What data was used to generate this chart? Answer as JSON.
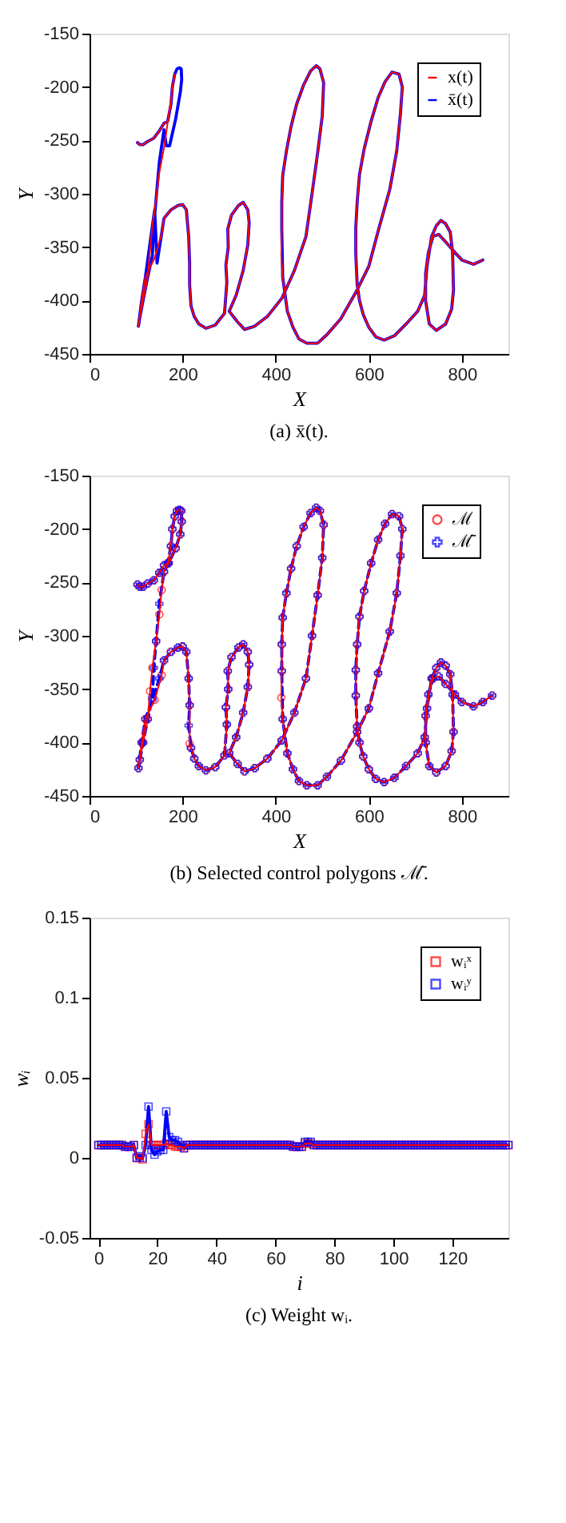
{
  "chart_data": [
    {
      "type": "line",
      "xlabel": "X",
      "ylabel": "Y",
      "xlim": [
        0,
        900
      ],
      "ylim": [
        -450,
        -150
      ],
      "xticks": [
        0,
        200,
        400,
        600,
        800
      ],
      "yticks": [
        -450,
        -400,
        -350,
        -300,
        -250,
        -200,
        -150
      ],
      "grid": false,
      "legend": "top right",
      "line_style": "solid",
      "marker": "none",
      "annotations": [
        "(a) x̄(t)."
      ],
      "series": [
        {
          "name": "x(t)",
          "color": "#ff0000",
          "x": [
            103,
            108,
            115,
            125,
            138,
            150,
            160,
            168,
            175,
            178,
            183,
            160,
            150,
            143,
            135,
            130,
            125,
            115,
            108,
            105,
            112,
            120,
            140,
            155,
            160,
            175,
            190,
            200,
            208,
            213,
            215,
            215,
            218,
            225,
            235,
            250,
            270,
            290,
            295,
            293,
            298,
            297,
            305,
            320,
            330,
            340,
            343,
            340,
            330,
            315,
            300,
            318,
            333,
            355,
            382,
            413,
            440,
            465,
            478,
            490,
            500,
            503,
            495,
            487,
            475,
            460,
            445,
            433,
            423,
            415,
            413,
            413,
            412,
            415,
            425,
            437,
            450,
            467,
            490,
            510,
            540,
            575,
            600,
            620,
            645,
            660,
            668,
            672,
            665,
            650,
            635,
            620,
            605,
            590,
            580,
            575,
            572,
            572,
            575,
            580,
            588,
            600,
            615,
            633,
            655,
            680,
            705,
            720,
            725,
            735,
            745,
            755,
            765,
            775,
            780,
            782,
            778,
            765,
            745,
            730,
            722,
            722,
            728,
            738,
            750,
            765,
            785,
            800,
            825,
            845
          ],
          "values": [
            -252,
            -254,
            -254,
            -251,
            -248,
            -241,
            -234,
            -232,
            -216,
            -200,
            -188,
            -257,
            -280,
            -305,
            -330,
            -352,
            -378,
            -400,
            -416,
            -424,
            -400,
            -378,
            -360,
            -337,
            -323,
            -315,
            -311,
            -310,
            -315,
            -340,
            -365,
            -385,
            -405,
            -415,
            -422,
            -426,
            -423,
            -412,
            -383,
            -367,
            -350,
            -333,
            -320,
            -311,
            -308,
            -315,
            -327,
            -348,
            -372,
            -395,
            -410,
            -420,
            -427,
            -424,
            -415,
            -398,
            -372,
            -340,
            -300,
            -262,
            -227,
            -196,
            -183,
            -180,
            -185,
            -198,
            -216,
            -237,
            -260,
            -283,
            -308,
            -333,
            -358,
            -378,
            -410,
            -425,
            -436,
            -440,
            -440,
            -432,
            -417,
            -390,
            -368,
            -335,
            -296,
            -260,
            -225,
            -200,
            -188,
            -186,
            -195,
            -210,
            -232,
            -258,
            -282,
            -308,
            -332,
            -356,
            -385,
            -400,
            -413,
            -425,
            -434,
            -437,
            -433,
            -422,
            -410,
            -395,
            -368,
            -340,
            -330,
            -325,
            -328,
            -336,
            -355,
            -390,
            -408,
            -422,
            -428,
            -422,
            -400,
            -375,
            -355,
            -340,
            -338,
            -345,
            -355,
            -362,
            -366,
            -362
          ]
        },
        {
          "name": "x̄(t)",
          "color": "#0000ff",
          "x": [
            103,
            108,
            115,
            125,
            138,
            150,
            160,
            168,
            175,
            178,
            183,
            188,
            193,
            197,
            198,
            195,
            185,
            172,
            165,
            160,
            150,
            143,
            138,
            135,
            125,
            115,
            108,
            105,
            112,
            120,
            135,
            140,
            145,
            160,
            175,
            190,
            200,
            208,
            213,
            215,
            215,
            218,
            225,
            235,
            250,
            270,
            290,
            295,
            293,
            298,
            297,
            305,
            320,
            330,
            340,
            343,
            340,
            330,
            315,
            300,
            318,
            333,
            355,
            382,
            413,
            440,
            465,
            478,
            490,
            500,
            503,
            495,
            487,
            475,
            460,
            445,
            433,
            423,
            415,
            413,
            413,
            415,
            425,
            437,
            450,
            467,
            490,
            510,
            540,
            575,
            600,
            620,
            645,
            660,
            668,
            672,
            665,
            650,
            635,
            620,
            605,
            590,
            580,
            575,
            572,
            572,
            575,
            580,
            588,
            600,
            615,
            633,
            655,
            680,
            705,
            720,
            725,
            735,
            745,
            755,
            765,
            775,
            780,
            782,
            778,
            765,
            745,
            730,
            722,
            722,
            728,
            738,
            750,
            765,
            785,
            800,
            825,
            845
          ],
          "values": [
            -252,
            -254,
            -254,
            -251,
            -248,
            -241,
            -234,
            -232,
            -216,
            -200,
            -188,
            -183,
            -182,
            -183,
            -193,
            -205,
            -230,
            -255,
            -255,
            -240,
            -270,
            -305,
            -330,
            -358,
            -378,
            -400,
            -416,
            -424,
            -400,
            -378,
            -330,
            -315,
            -365,
            -323,
            -315,
            -311,
            -310,
            -315,
            -340,
            -365,
            -385,
            -405,
            -415,
            -422,
            -426,
            -423,
            -412,
            -383,
            -367,
            -350,
            -333,
            -320,
            -311,
            -308,
            -315,
            -327,
            -348,
            -372,
            -395,
            -410,
            -420,
            -427,
            -424,
            -415,
            -398,
            -372,
            -340,
            -300,
            -262,
            -227,
            -196,
            -183,
            -180,
            -185,
            -198,
            -216,
            -237,
            -260,
            -283,
            -308,
            -333,
            -378,
            -410,
            -425,
            -436,
            -440,
            -440,
            -432,
            -417,
            -390,
            -368,
            -335,
            -296,
            -260,
            -225,
            -200,
            -188,
            -186,
            -195,
            -210,
            -232,
            -258,
            -282,
            -308,
            -332,
            -356,
            -385,
            -400,
            -413,
            -425,
            -434,
            -437,
            -433,
            -422,
            -410,
            -395,
            -368,
            -340,
            -330,
            -325,
            -328,
            -336,
            -355,
            -390,
            -408,
            -422,
            -428,
            -422,
            -400,
            -375,
            -355,
            -340,
            -338,
            -345,
            -355,
            -362,
            -366,
            -362
          ]
        }
      ]
    },
    {
      "type": "line",
      "xlabel": "X",
      "ylabel": "Y",
      "xlim": [
        0,
        900
      ],
      "ylim": [
        -450,
        -150
      ],
      "xticks": [
        0,
        200,
        400,
        600,
        800
      ],
      "yticks": [
        -450,
        -400,
        -350,
        -300,
        -250,
        -200,
        -150
      ],
      "grid": false,
      "legend": "top right",
      "annotations": [
        "(b) Selected control polygons ℳ̄."
      ],
      "series": [
        {
          "name": "ℳ",
          "color": "#ff0000",
          "marker": "circle",
          "line_style": "solid",
          "x": [
            103,
            108,
            115,
            125,
            138,
            150,
            160,
            168,
            175,
            178,
            183,
            188,
            193,
            197,
            198,
            195,
            185,
            170,
            160,
            155,
            150,
            143,
            135,
            130,
            125,
            115,
            108,
            105,
            112,
            120,
            140,
            155,
            160,
            175,
            190,
            200,
            208,
            213,
            215,
            215,
            218,
            225,
            235,
            250,
            270,
            290,
            295,
            293,
            298,
            297,
            305,
            320,
            330,
            340,
            343,
            340,
            330,
            315,
            300,
            318,
            333,
            355,
            382,
            413,
            440,
            465,
            478,
            490,
            500,
            503,
            495,
            487,
            475,
            460,
            445,
            433,
            423,
            415,
            413,
            413,
            412,
            415,
            425,
            437,
            450,
            467,
            490,
            510,
            540,
            575,
            600,
            620,
            645,
            660,
            668,
            672,
            665,
            650,
            635,
            620,
            605,
            590,
            580,
            575,
            572,
            572,
            575,
            580,
            588,
            600,
            615,
            633,
            655,
            680,
            705,
            720,
            725,
            735,
            745,
            755,
            765,
            775,
            780,
            782,
            778,
            765,
            745,
            730,
            722,
            722,
            728,
            738,
            750,
            765,
            785,
            800,
            825,
            845,
            865
          ],
          "values": [
            -252,
            -254,
            -254,
            -251,
            -248,
            -241,
            -234,
            -232,
            -216,
            -200,
            -188,
            -183,
            -182,
            -183,
            -193,
            -205,
            -218,
            -232,
            -240,
            -257,
            -280,
            -305,
            -330,
            -352,
            -378,
            -400,
            -416,
            -424,
            -400,
            -378,
            -360,
            -337,
            -323,
            -315,
            -311,
            -310,
            -315,
            -340,
            -365,
            -401,
            -405,
            -415,
            -422,
            -426,
            -423,
            -412,
            -383,
            -367,
            -350,
            -333,
            -320,
            -311,
            -308,
            -315,
            -327,
            -348,
            -372,
            -395,
            -410,
            -420,
            -427,
            -424,
            -415,
            -398,
            -372,
            -340,
            -300,
            -262,
            -227,
            -196,
            -183,
            -180,
            -185,
            -198,
            -216,
            -237,
            -260,
            -283,
            -308,
            -333,
            -358,
            -378,
            -410,
            -425,
            -436,
            -440,
            -440,
            -432,
            -417,
            -390,
            -368,
            -335,
            -296,
            -260,
            -225,
            -200,
            -188,
            -186,
            -195,
            -210,
            -232,
            -258,
            -282,
            -308,
            -332,
            -356,
            -385,
            -400,
            -413,
            -425,
            -434,
            -437,
            -433,
            -422,
            -410,
            -395,
            -368,
            -340,
            -330,
            -325,
            -328,
            -336,
            -355,
            -390,
            -408,
            -422,
            -428,
            -422,
            -400,
            -375,
            -355,
            -340,
            -338,
            -345,
            -355,
            -362,
            -366,
            -362,
            -356
          ]
        },
        {
          "name": "ℳ̄",
          "color": "#0000ff",
          "marker": "cross",
          "line_style": "dashed",
          "x": [
            103,
            108,
            115,
            125,
            138,
            150,
            160,
            168,
            175,
            178,
            183,
            188,
            193,
            197,
            198,
            195,
            185,
            170,
            160,
            150,
            143,
            138,
            135,
            125,
            115,
            108,
            105,
            112,
            120,
            135,
            150,
            160,
            175,
            190,
            200,
            208,
            213,
            215,
            213,
            218,
            225,
            235,
            250,
            270,
            290,
            295,
            293,
            298,
            297,
            305,
            320,
            330,
            340,
            343,
            340,
            330,
            315,
            300,
            318,
            333,
            355,
            382,
            413,
            440,
            465,
            478,
            490,
            500,
            503,
            495,
            487,
            475,
            460,
            445,
            433,
            423,
            415,
            413,
            413,
            415,
            425,
            437,
            450,
            467,
            490,
            510,
            540,
            575,
            600,
            620,
            645,
            660,
            668,
            672,
            665,
            650,
            635,
            620,
            605,
            590,
            580,
            575,
            572,
            572,
            575,
            580,
            588,
            600,
            615,
            633,
            655,
            680,
            705,
            720,
            725,
            735,
            745,
            755,
            765,
            775,
            780,
            782,
            778,
            765,
            745,
            730,
            722,
            722,
            728,
            738,
            750,
            765,
            785,
            800,
            825,
            845,
            865
          ],
          "values": [
            -252,
            -254,
            -254,
            -251,
            -248,
            -241,
            -234,
            -232,
            -216,
            -200,
            -188,
            -183,
            -182,
            -183,
            -193,
            -205,
            -218,
            -232,
            -240,
            -270,
            -305,
            -330,
            -358,
            -378,
            -400,
            -416,
            -424,
            -400,
            -378,
            -360,
            -340,
            -323,
            -315,
            -311,
            -310,
            -315,
            -340,
            -365,
            -384,
            -405,
            -415,
            -422,
            -426,
            -423,
            -412,
            -383,
            -367,
            -350,
            -333,
            -320,
            -311,
            -308,
            -315,
            -327,
            -348,
            -372,
            -395,
            -410,
            -420,
            -427,
            -424,
            -415,
            -398,
            -372,
            -340,
            -300,
            -262,
            -227,
            -196,
            -183,
            -180,
            -185,
            -198,
            -216,
            -237,
            -260,
            -283,
            -308,
            -333,
            -378,
            -410,
            -425,
            -436,
            -440,
            -440,
            -432,
            -417,
            -390,
            -368,
            -335,
            -296,
            -260,
            -225,
            -200,
            -188,
            -186,
            -195,
            -210,
            -232,
            -258,
            -282,
            -308,
            -332,
            -356,
            -385,
            -400,
            -413,
            -425,
            -434,
            -437,
            -433,
            -422,
            -410,
            -395,
            -368,
            -340,
            -330,
            -325,
            -328,
            -336,
            -355,
            -390,
            -408,
            -422,
            -428,
            -422,
            -400,
            -375,
            -355,
            -340,
            -338,
            -345,
            -355,
            -362,
            -366,
            -362,
            -356
          ]
        }
      ]
    },
    {
      "type": "line",
      "xlabel": "i",
      "ylabel": "wᵢ",
      "xlim": [
        -3,
        139
      ],
      "ylim": [
        -0.05,
        0.15
      ],
      "xticks": [
        0,
        20,
        40,
        60,
        80,
        100,
        120
      ],
      "yticks": [
        -0.05,
        0,
        0.05,
        0.1,
        0.15
      ],
      "grid": false,
      "legend": "top right",
      "marker": "square",
      "line_style": "solid",
      "annotations": [
        "(c) Weight wᵢ."
      ],
      "series": [
        {
          "name": "wᵢˣ",
          "color": "#ff0000",
          "x": [
            0,
            1,
            2,
            3,
            4,
            5,
            6,
            7,
            8,
            9,
            10,
            11,
            12,
            13,
            14,
            15,
            16,
            17,
            18,
            19,
            20,
            21,
            22,
            23,
            24,
            25,
            26,
            27,
            28,
            29,
            30,
            31,
            32,
            33,
            34,
            35,
            36,
            37,
            38,
            39,
            40,
            41,
            42,
            43,
            44,
            45,
            46,
            47,
            48,
            49,
            50,
            51,
            52,
            53,
            54,
            55,
            56,
            57,
            58,
            59,
            60,
            61,
            62,
            63,
            64,
            65,
            66,
            67,
            68,
            69,
            70,
            71,
            72,
            73,
            74,
            75,
            76,
            77,
            78,
            79,
            80,
            81,
            82,
            83,
            84,
            85,
            86,
            87,
            88,
            89,
            90,
            91,
            92,
            93,
            94,
            95,
            96,
            97,
            98,
            99,
            100,
            101,
            102,
            103,
            104,
            105,
            106,
            107,
            108,
            109,
            110,
            111,
            112,
            113,
            114,
            115,
            116,
            117,
            118,
            119,
            120,
            121,
            122,
            123,
            124,
            125,
            126,
            127,
            128,
            129,
            130,
            131,
            132,
            133,
            134,
            135,
            136,
            137,
            138,
            139
          ],
          "values": [
            0.008,
            0.008,
            0.008,
            0.008,
            0.008,
            0.008,
            0.008,
            0.008,
            0.008,
            0.007,
            0.007,
            0.007,
            0.008,
            0,
            0,
            -0.001,
            0.015,
            0.021,
            0.008,
            0.008,
            0.008,
            0.008,
            0.008,
            0.009,
            0.008,
            0.008,
            0.007,
            0.007,
            0.007,
            0.006,
            0.008,
            0.008,
            0.008,
            0.008,
            0.008,
            0.008,
            0.008,
            0.008,
            0.008,
            0.008,
            0.008,
            0.008,
            0.008,
            0.008,
            0.008,
            0.008,
            0.008,
            0.008,
            0.008,
            0.008,
            0.008,
            0.008,
            0.008,
            0.008,
            0.008,
            0.008,
            0.008,
            0.008,
            0.008,
            0.008,
            0.008,
            0.008,
            0.008,
            0.008,
            0.008,
            0.008,
            0.007,
            0.007,
            0.007,
            0.007,
            0.009,
            0.009,
            0.009,
            0.008,
            0.008,
            0.008,
            0.008,
            0.008,
            0.008,
            0.008,
            0.008,
            0.008,
            0.008,
            0.008,
            0.008,
            0.008,
            0.008,
            0.008,
            0.008,
            0.008,
            0.008,
            0.008,
            0.008,
            0.008,
            0.008,
            0.008,
            0.008,
            0.008,
            0.008,
            0.008,
            0.008,
            0.008,
            0.008,
            0.008,
            0.008,
            0.008,
            0.008,
            0.008,
            0.008,
            0.008,
            0.008,
            0.008,
            0.008,
            0.008,
            0.008,
            0.008,
            0.008,
            0.008,
            0.008,
            0.008,
            0.008,
            0.008,
            0.008,
            0.008,
            0.008,
            0.008,
            0.008,
            0.008,
            0.008,
            0.008,
            0.008,
            0.008,
            0.008,
            0.008,
            0.008,
            0.008,
            0.008,
            0.008,
            0.008,
            0.008
          ]
        },
        {
          "name": "wᵢʸ",
          "color": "#0000ff",
          "x": [
            0,
            1,
            2,
            3,
            4,
            5,
            6,
            7,
            8,
            9,
            10,
            11,
            12,
            13,
            14,
            15,
            16,
            17,
            18,
            19,
            20,
            21,
            22,
            23,
            24,
            25,
            26,
            27,
            28,
            29,
            30,
            31,
            32,
            33,
            34,
            35,
            36,
            37,
            38,
            39,
            40,
            41,
            42,
            43,
            44,
            45,
            46,
            47,
            48,
            49,
            50,
            51,
            52,
            53,
            54,
            55,
            56,
            57,
            58,
            59,
            60,
            61,
            62,
            63,
            64,
            65,
            66,
            67,
            68,
            69,
            70,
            71,
            72,
            73,
            74,
            75,
            76,
            77,
            78,
            79,
            80,
            81,
            82,
            83,
            84,
            85,
            86,
            87,
            88,
            89,
            90,
            91,
            92,
            93,
            94,
            95,
            96,
            97,
            98,
            99,
            100,
            101,
            102,
            103,
            104,
            105,
            106,
            107,
            108,
            109,
            110,
            111,
            112,
            113,
            114,
            115,
            116,
            117,
            118,
            119,
            120,
            121,
            122,
            123,
            124,
            125,
            126,
            127,
            128,
            129,
            130,
            131,
            132,
            133,
            134,
            135,
            136,
            137,
            138,
            139
          ],
          "values": [
            0.008,
            0.008,
            0.008,
            0.008,
            0.008,
            0.008,
            0.008,
            0.008,
            0.008,
            0.007,
            0.007,
            0.007,
            0.008,
            0,
            0.001,
            0,
            0.008,
            0.032,
            0.005,
            0.002,
            0.004,
            0.005,
            0.005,
            0.029,
            0.013,
            0.011,
            0.011,
            0.01,
            0.008,
            0.006,
            0.008,
            0.008,
            0.008,
            0.008,
            0.008,
            0.008,
            0.008,
            0.008,
            0.008,
            0.008,
            0.008,
            0.008,
            0.008,
            0.008,
            0.008,
            0.008,
            0.008,
            0.008,
            0.008,
            0.008,
            0.008,
            0.008,
            0.008,
            0.008,
            0.008,
            0.008,
            0.008,
            0.008,
            0.008,
            0.008,
            0.008,
            0.008,
            0.008,
            0.008,
            0.008,
            0.008,
            0.007,
            0.007,
            0.007,
            0.007,
            0.01,
            0.01,
            0.01,
            0.008,
            0.008,
            0.008,
            0.008,
            0.008,
            0.008,
            0.008,
            0.008,
            0.008,
            0.008,
            0.008,
            0.008,
            0.008,
            0.008,
            0.008,
            0.008,
            0.008,
            0.008,
            0.008,
            0.008,
            0.008,
            0.008,
            0.008,
            0.008,
            0.008,
            0.008,
            0.008,
            0.008,
            0.008,
            0.008,
            0.008,
            0.008,
            0.008,
            0.008,
            0.008,
            0.008,
            0.008,
            0.008,
            0.008,
            0.008,
            0.008,
            0.008,
            0.008,
            0.008,
            0.008,
            0.008,
            0.008,
            0.008,
            0.008,
            0.008,
            0.008,
            0.008,
            0.008,
            0.008,
            0.008,
            0.008,
            0.008,
            0.008,
            0.008,
            0.008,
            0.008,
            0.008,
            0.008,
            0.008,
            0.008,
            0.008,
            0.008
          ]
        }
      ]
    }
  ]
}
